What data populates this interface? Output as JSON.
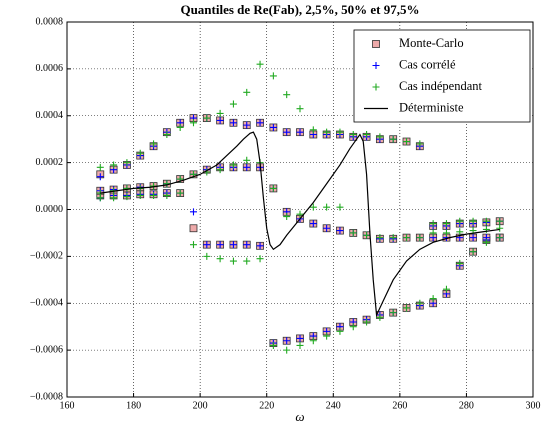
{
  "chart_data": {
    "type": "quantile-scatter",
    "title": "Quantiles de Re(Fab), 2,5%, 50% et 97,5%",
    "x_label": "ω",
    "xlim": [
      160,
      300
    ],
    "xticks": [
      160,
      180,
      200,
      220,
      240,
      260,
      280,
      300
    ],
    "ylim": [
      -0.0008,
      0.0008
    ],
    "yticks": [
      {
        "value": -0.0008,
        "label": "−0.0008"
      },
      {
        "value": -0.0006,
        "label": "−0.0006"
      },
      {
        "value": -0.0004,
        "label": "−0.0004"
      },
      {
        "value": -0.0002,
        "label": "−0.0002"
      },
      {
        "value": 0,
        "label": "0.0000"
      },
      {
        "value": 0.0002,
        "label": "0.0002"
      },
      {
        "value": 0.0004,
        "label": "0.0004"
      },
      {
        "value": 0.0006,
        "label": "0.0006"
      },
      {
        "value": 0.0008,
        "label": "0.0008"
      }
    ],
    "grid": true,
    "legend": "upper right",
    "x": [
      170,
      174,
      178,
      182,
      186,
      190,
      194,
      198,
      202,
      206,
      210,
      214,
      218,
      222,
      226,
      230,
      234,
      238,
      242,
      246,
      250,
      254,
      258,
      262,
      266,
      270,
      274,
      278,
      282,
      286,
      290
    ],
    "series": [
      {
        "name": "Monte-Carlo",
        "marker": "square",
        "color": "#eeaaaa",
        "lower": [
          6e-05,
          6e-05,
          6e-05,
          6.5e-05,
          6.5e-05,
          7e-05,
          7e-05,
          -8e-05,
          -0.00015,
          -0.00015,
          -0.00015,
          -0.00015,
          -0.000155,
          -0.00057,
          -0.00056,
          -0.00055,
          -0.00054,
          -0.00052,
          -0.0005,
          -0.00048,
          -0.00047,
          -0.00045,
          -0.00044,
          -0.00042,
          -0.00041,
          -0.0004,
          -0.00036,
          -0.00024,
          -0.00018,
          -0.00013,
          -0.00012
        ],
        "values": [
          8e-05,
          8.5e-05,
          9e-05,
          9.5e-05,
          0.0001,
          0.00011,
          0.00013,
          0.00015,
          0.00017,
          0.00018,
          0.00018,
          0.00018,
          0.00018,
          9e-05,
          -1e-05,
          -4e-05,
          -6e-05,
          -8e-05,
          -9e-05,
          -0.0001,
          -0.00011,
          -0.000125,
          -0.000125,
          -0.00012,
          -0.00012,
          -0.00012,
          -0.00012,
          -0.00012,
          -0.00012,
          -0.00012,
          -0.00012
        ],
        "upper": [
          0.00015,
          0.00017,
          0.00019,
          0.00023,
          0.00027,
          0.00033,
          0.00037,
          0.00039,
          0.00039,
          0.00038,
          0.00037,
          0.00036,
          0.00037,
          0.00035,
          0.00033,
          0.00033,
          0.00032,
          0.00032,
          0.00032,
          0.00031,
          0.00031,
          0.0003,
          0.0003,
          0.00029,
          0.00027,
          -7e-05,
          -7e-05,
          -6e-05,
          -6e-05,
          -5.5e-05,
          -5e-05
        ]
      },
      {
        "name": "Cas corrélé",
        "marker": "plus",
        "color": "#0000ff",
        "lower": [
          5e-05,
          6e-05,
          6e-05,
          6.5e-05,
          6.5e-05,
          7e-05,
          7e-05,
          -1e-05,
          -0.00015,
          -0.00015,
          -0.00015,
          -0.00015,
          -0.000155,
          -0.00057,
          -0.00056,
          -0.00055,
          -0.00054,
          -0.00052,
          -0.0005,
          -0.00048,
          -0.00047,
          -0.00045,
          -0.00044,
          -0.00042,
          -0.00041,
          -0.0004,
          -0.00036,
          -0.00024,
          -0.00018,
          -0.00013,
          -0.00012
        ],
        "values": [
          8e-05,
          8.5e-05,
          9e-05,
          9.5e-05,
          0.0001,
          0.00011,
          0.00013,
          0.00015,
          0.00017,
          0.00018,
          0.00018,
          0.00018,
          0.00018,
          9e-05,
          -1e-05,
          -4e-05,
          -6e-05,
          -8e-05,
          -9e-05,
          -0.0001,
          -0.00011,
          -0.000125,
          -0.000125,
          -0.00012,
          -0.00012,
          -0.00012,
          -0.00012,
          -0.00012,
          -0.00012,
          -0.00012,
          -0.00012
        ],
        "upper": [
          0.00014,
          0.00017,
          0.00019,
          0.00023,
          0.00027,
          0.00033,
          0.00037,
          0.00039,
          0.00039,
          0.00038,
          0.00037,
          0.00036,
          0.00037,
          0.00035,
          0.00033,
          0.00033,
          0.00032,
          0.00032,
          0.00032,
          0.00031,
          0.00031,
          0.0003,
          0.0003,
          0.00029,
          0.00027,
          -7e-05,
          -7e-05,
          -6e-05,
          -6e-05,
          -5.5e-05,
          -5e-05
        ]
      },
      {
        "name": "Cas indépendant",
        "marker": "plus",
        "color": "#22aa22",
        "lower": [
          5e-05,
          5e-05,
          5.5e-05,
          6e-05,
          6e-05,
          6e-05,
          7e-05,
          -0.00015,
          -0.0002,
          -0.00021,
          -0.00022,
          -0.00022,
          -0.00021,
          -0.00058,
          -0.0006,
          -0.00058,
          -0.00056,
          -0.00054,
          -0.00052,
          -0.0005,
          -0.00048,
          -0.00046,
          -0.00044,
          -0.00042,
          -0.0004,
          -0.00038,
          -0.00034,
          -0.00023,
          -0.00018,
          -0.00014,
          -0.00012
        ],
        "values": [
          7e-05,
          8e-05,
          9e-05,
          9e-05,
          0.0001,
          0.00011,
          0.00013,
          0.00015,
          0.00016,
          0.00017,
          0.00019,
          0.00021,
          0.0002,
          9e-05,
          -3e-05,
          -2e-05,
          1e-05,
          1e-05,
          1e-05,
          -0.0001,
          -0.00011,
          -0.00012,
          -0.00012,
          -0.00012,
          -0.00012,
          -0.0001,
          -0.0001,
          -9.5e-05,
          -9e-05,
          -8.5e-05,
          -8e-05
        ],
        "upper": [
          0.00018,
          0.00019,
          0.0002,
          0.00024,
          0.00028,
          0.00032,
          0.00035,
          0.00037,
          0.00039,
          0.00041,
          0.00045,
          0.0005,
          0.00062,
          0.00057,
          0.00049,
          0.00043,
          0.00034,
          0.00033,
          0.00033,
          0.00032,
          0.00032,
          0.00031,
          0.0003,
          0.00029,
          0.00028,
          -6e-05,
          -6e-05,
          -5e-05,
          -5e-05,
          -5e-05,
          -5e-05
        ]
      },
      {
        "name": "Déterministe",
        "marker": "line",
        "color": "#000000",
        "x": [
          170,
          175,
          180,
          185,
          190,
          195,
          200,
          205,
          208,
          211,
          213,
          215,
          216,
          217,
          218,
          219,
          220,
          221,
          222,
          224,
          226,
          230,
          234,
          238,
          242,
          245,
          247,
          248,
          249,
          250,
          251,
          252,
          253,
          255,
          258,
          262,
          266,
          270,
          275,
          280,
          285,
          290
        ],
        "values": [
          7e-05,
          8e-05,
          9e-05,
          9.5e-05,
          0.000105,
          0.000125,
          0.00015,
          0.00019,
          0.00023,
          0.00027,
          0.0003,
          0.000325,
          0.00033,
          0.0003,
          0.0002,
          5e-05,
          -8e-05,
          -0.00015,
          -0.00017,
          -0.00015,
          -0.00011,
          -4e-05,
          3e-05,
          0.00011,
          0.00019,
          0.00026,
          0.0003,
          0.00032,
          0.00029,
          0.00015,
          -0.0001,
          -0.0003,
          -0.00045,
          -0.00039,
          -0.0003,
          -0.00022,
          -0.00017,
          -0.00014,
          -0.00012,
          -0.000105,
          -9.5e-05,
          -8.5e-05
        ]
      }
    ]
  }
}
